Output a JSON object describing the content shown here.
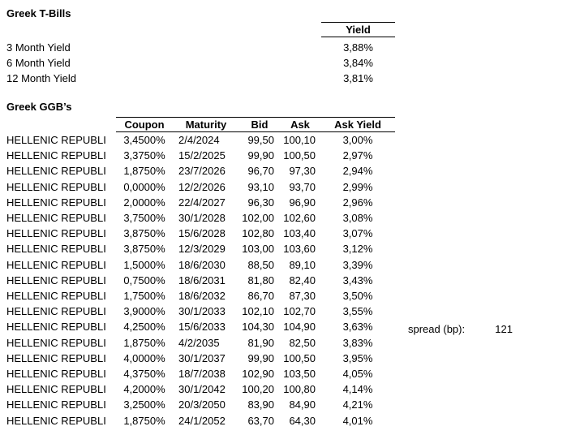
{
  "colors": {
    "background": "#ffffff",
    "text": "#000000",
    "rule_lines": "#000000"
  },
  "tbills": {
    "title": "Greek T-Bills",
    "yield_header": "Yield",
    "rows": [
      {
        "label": "3 Month Yield",
        "value": "3,88%"
      },
      {
        "label": "6 Month Yield",
        "value": "3,84%"
      },
      {
        "label": "12 Month Yield",
        "value": "3,81%"
      }
    ]
  },
  "ggbs": {
    "title": "Greek GGB’s",
    "columns": [
      "Coupon",
      "Maturity",
      "Bid",
      "Ask",
      "Ask Yield"
    ],
    "rows": [
      {
        "name": "HELLENIC REPUBLI",
        "coupon": "3,4500%",
        "maturity": "2/4/2024",
        "bid": "99,50",
        "ask": "100,10",
        "ask_yield": "3,00%"
      },
      {
        "name": "HELLENIC REPUBLI",
        "coupon": "3,3750%",
        "maturity": "15/2/2025",
        "bid": "99,90",
        "ask": "100,50",
        "ask_yield": "2,97%"
      },
      {
        "name": "HELLENIC REPUBLI",
        "coupon": "1,8750%",
        "maturity": "23/7/2026",
        "bid": "96,70",
        "ask": "97,30",
        "ask_yield": "2,94%"
      },
      {
        "name": "HELLENIC REPUBLI",
        "coupon": "0,0000%",
        "maturity": "12/2/2026",
        "bid": "93,10",
        "ask": "93,70",
        "ask_yield": "2,99%"
      },
      {
        "name": "HELLENIC REPUBLI",
        "coupon": "2,0000%",
        "maturity": "22/4/2027",
        "bid": "96,30",
        "ask": "96,90",
        "ask_yield": "2,96%"
      },
      {
        "name": "HELLENIC REPUBLI",
        "coupon": "3,7500%",
        "maturity": "30/1/2028",
        "bid": "102,00",
        "ask": "102,60",
        "ask_yield": "3,08%"
      },
      {
        "name": "HELLENIC REPUBLI",
        "coupon": "3,8750%",
        "maturity": "15/6/2028",
        "bid": "102,80",
        "ask": "103,40",
        "ask_yield": "3,07%"
      },
      {
        "name": "HELLENIC REPUBLI",
        "coupon": "3,8750%",
        "maturity": "12/3/2029",
        "bid": "103,00",
        "ask": "103,60",
        "ask_yield": "3,12%"
      },
      {
        "name": "HELLENIC REPUBLI",
        "coupon": "1,5000%",
        "maturity": "18/6/2030",
        "bid": "88,50",
        "ask": "89,10",
        "ask_yield": "3,39%"
      },
      {
        "name": "HELLENIC REPUBLI",
        "coupon": "0,7500%",
        "maturity": "18/6/2031",
        "bid": "81,80",
        "ask": "82,40",
        "ask_yield": "3,43%"
      },
      {
        "name": "HELLENIC REPUBLI",
        "coupon": "1,7500%",
        "maturity": "18/6/2032",
        "bid": "86,70",
        "ask": "87,30",
        "ask_yield": "3,50%"
      },
      {
        "name": "HELLENIC REPUBLI",
        "coupon": "3,9000%",
        "maturity": "30/1/2033",
        "bid": "102,10",
        "ask": "102,70",
        "ask_yield": "3,55%"
      },
      {
        "name": "HELLENIC REPUBLI",
        "coupon": "4,2500%",
        "maturity": "15/6/2033",
        "bid": "104,30",
        "ask": "104,90",
        "ask_yield": "3,63%"
      },
      {
        "name": "HELLENIC REPUBLI",
        "coupon": "1,8750%",
        "maturity": "4/2/2035",
        "bid": "81,90",
        "ask": "82,50",
        "ask_yield": "3,83%"
      },
      {
        "name": "HELLENIC REPUBLI",
        "coupon": "4,0000%",
        "maturity": "30/1/2037",
        "bid": "99,90",
        "ask": "100,50",
        "ask_yield": "3,95%"
      },
      {
        "name": "HELLENIC REPUBLI",
        "coupon": "4,3750%",
        "maturity": "18/7/2038",
        "bid": "102,90",
        "ask": "103,50",
        "ask_yield": "4,05%"
      },
      {
        "name": "HELLENIC REPUBLI",
        "coupon": "4,2000%",
        "maturity": "30/1/2042",
        "bid": "100,20",
        "ask": "100,80",
        "ask_yield": "4,14%"
      },
      {
        "name": "HELLENIC REPUBLI",
        "coupon": "3,2500%",
        "maturity": "20/3/2050",
        "bid": "83,90",
        "ask": "84,90",
        "ask_yield": "4,21%"
      },
      {
        "name": "HELLENIC REPUBLI",
        "coupon": "1,8750%",
        "maturity": "24/1/2052",
        "bid": "63,70",
        "ask": "64,30",
        "ask_yield": "4,01%"
      }
    ]
  },
  "spread": {
    "label": "spread (bp):",
    "value": "121"
  }
}
